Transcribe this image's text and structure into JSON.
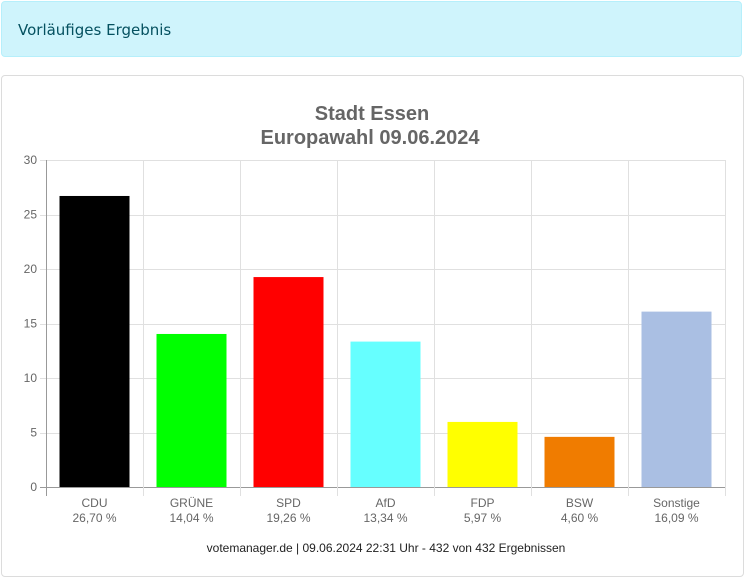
{
  "alert": {
    "text": "Vorläufiges Ergebnis"
  },
  "chart_data": {
    "type": "bar",
    "title": "Stadt Essen",
    "subtitle": "Europawahl 09.06.2024",
    "xlabel": "",
    "ylabel": "",
    "ylim": [
      0,
      30
    ],
    "yticks": [
      "0",
      "5",
      "10",
      "15",
      "20",
      "25",
      "30"
    ],
    "ytick_values": [
      0,
      5,
      10,
      15,
      20,
      25,
      30
    ],
    "grid": true,
    "categories": [
      "CDU",
      "GRÜNE",
      "SPD",
      "AfD",
      "FDP",
      "BSW",
      "Sonstige"
    ],
    "value_labels": [
      "26,70 %",
      "14,04 %",
      "19,26 %",
      "13,34 %",
      "5,97 %",
      "4,60 %",
      "16,09 %"
    ],
    "values": [
      26.7,
      14.04,
      19.26,
      13.34,
      5.97,
      4.6,
      16.09
    ],
    "colors": [
      "#000000",
      "#00ff00",
      "#ff0000",
      "#66ffff",
      "#ffff00",
      "#f07c00",
      "#aabfe3"
    ],
    "footer": "votemanager.de | 09.06.2024 22:31 Uhr - 432 von 432 Ergebnissen"
  }
}
